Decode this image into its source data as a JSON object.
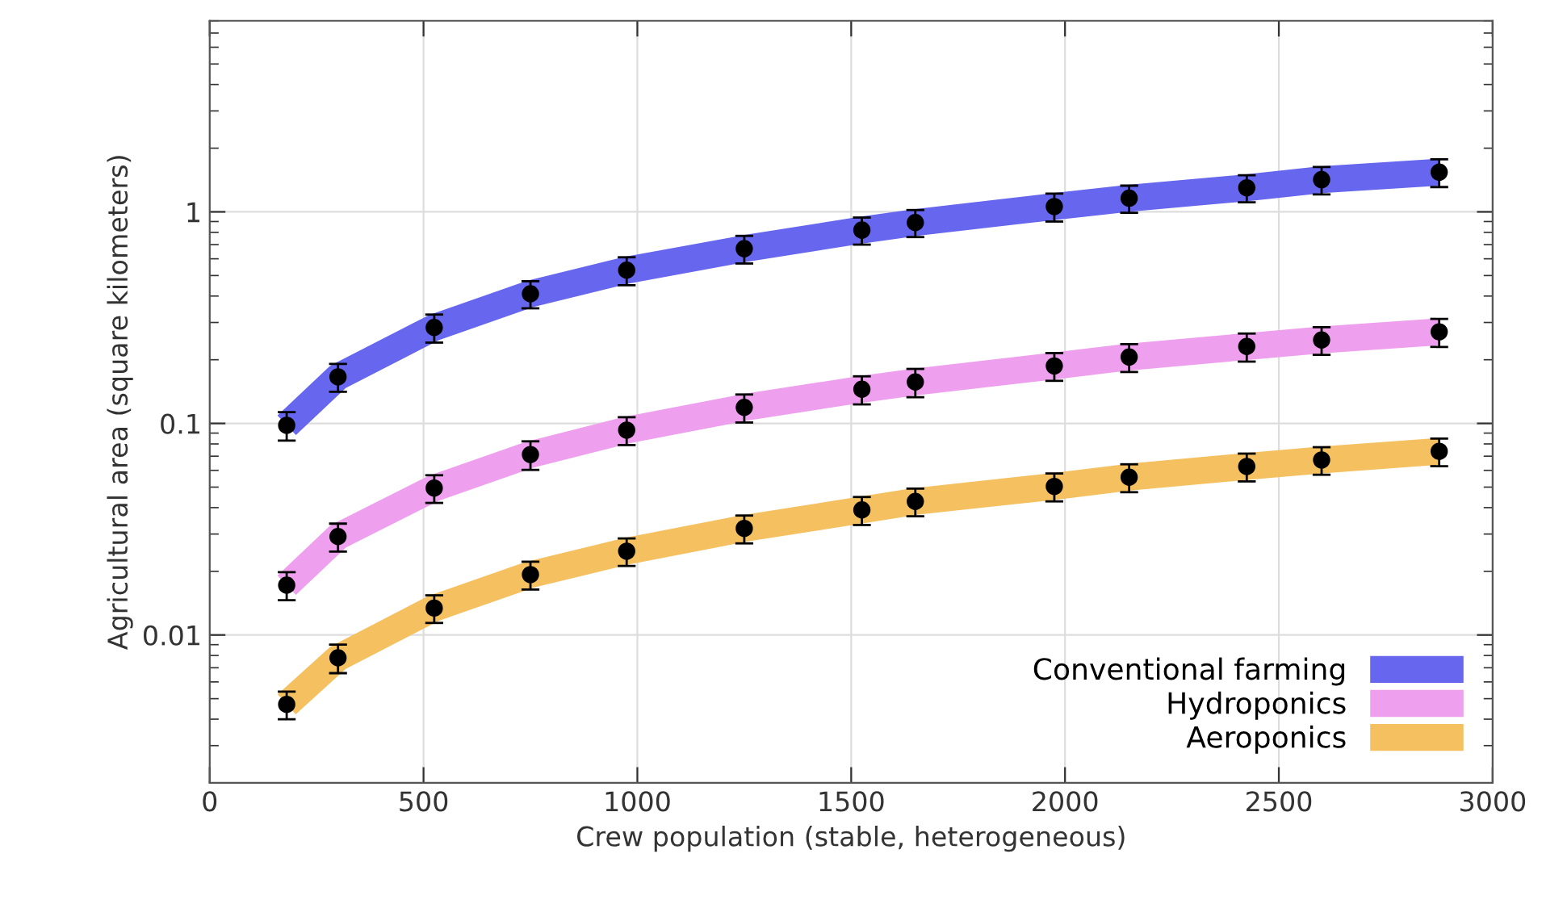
{
  "chart_data": {
    "type": "line",
    "xlabel": "Crew population (stable, heterogeneous)",
    "ylabel": "Agricultural area (square kilometers)",
    "xlim": [
      0,
      3000
    ],
    "xticks": [
      0,
      500,
      1000,
      1500,
      2000,
      2500,
      3000
    ],
    "ylim": [
      0.002,
      8
    ],
    "yticks": [
      0.01,
      0.1,
      1
    ],
    "log": "y",
    "grid": true,
    "legend": "bottom right",
    "x": [
      180,
      300,
      525,
      750,
      975,
      1250,
      1525,
      1650,
      1975,
      2150,
      2425,
      2600,
      2875
    ],
    "series": [
      {
        "name": "Conventional farming",
        "color": "#6666ee",
        "line_style": "solid",
        "values": [
          0.098,
          0.166,
          0.284,
          0.41,
          0.53,
          0.67,
          0.82,
          0.89,
          1.06,
          1.16,
          1.3,
          1.42,
          1.54
        ]
      },
      {
        "name": "Hydroponics",
        "color": "#eea0ee",
        "line_style": "solid",
        "values": [
          0.0172,
          0.0292,
          0.0495,
          0.0713,
          0.093,
          0.119,
          0.145,
          0.157,
          0.187,
          0.206,
          0.231,
          0.248,
          0.271
        ]
      },
      {
        "name": "Aeroponics",
        "color": "#f5c060",
        "line_style": "solid",
        "values": [
          0.0047,
          0.0078,
          0.0134,
          0.0193,
          0.0249,
          0.0319,
          0.039,
          0.0428,
          0.0504,
          0.0557,
          0.0626,
          0.0672,
          0.0738
        ]
      },
      {
        "type": "scatter",
        "color": "#000000",
        "marker": "circle",
        "values": [
          0.098,
          0.166,
          0.284,
          0.41,
          0.53,
          0.67,
          0.82,
          0.89,
          1.06,
          1.16,
          1.3,
          1.42,
          1.54
        ],
        "errors": [
          0.015,
          0.025,
          0.043,
          0.06,
          0.08,
          0.1,
          0.12,
          0.13,
          0.16,
          0.17,
          0.19,
          0.21,
          0.23
        ]
      },
      {
        "type": "scatter",
        "color": "#000000",
        "marker": "circle",
        "values": [
          0.0172,
          0.0292,
          0.0495,
          0.0713,
          0.093,
          0.119,
          0.145,
          0.157,
          0.187,
          0.206,
          0.231,
          0.248,
          0.271
        ],
        "errors": [
          0.0026,
          0.0044,
          0.0074,
          0.011,
          0.014,
          0.018,
          0.022,
          0.024,
          0.028,
          0.031,
          0.035,
          0.037,
          0.041
        ]
      },
      {
        "type": "scatter",
        "color": "#000000",
        "marker": "circle",
        "values": [
          0.0047,
          0.0078,
          0.0134,
          0.0193,
          0.0249,
          0.0319,
          0.039,
          0.0428,
          0.0504,
          0.0557,
          0.0626,
          0.0672,
          0.0738
        ],
        "errors": [
          0.0007,
          0.0012,
          0.002,
          0.0029,
          0.0037,
          0.0048,
          0.0059,
          0.0064,
          0.0076,
          0.0084,
          0.0094,
          0.01,
          0.011
        ]
      }
    ]
  }
}
